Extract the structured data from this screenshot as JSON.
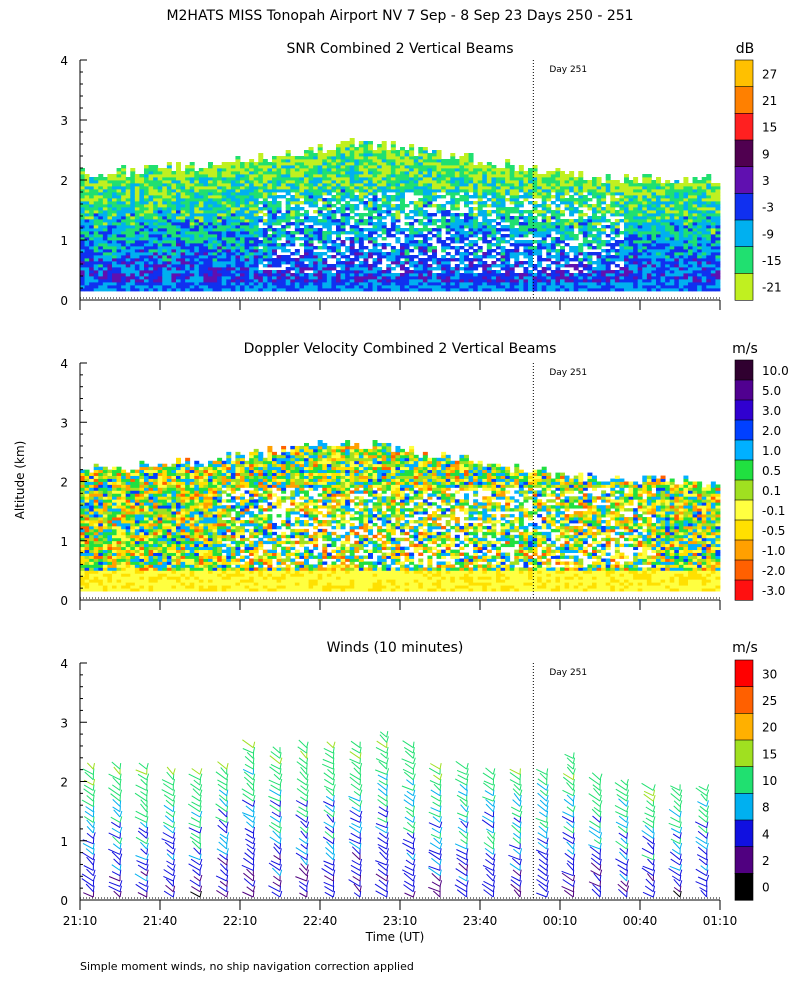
{
  "figure": {
    "title": "M2HATS MISS Tonopah Airport NV   7 Sep -  8 Sep 23 Days 250 - 251",
    "shared_ylabel": "Altitude (km)",
    "xlabel": "Time (UT)",
    "footnote": "Simple moment winds, no ship navigation correction applied",
    "x_ticks": [
      "21:10",
      "21:40",
      "22:10",
      "22:40",
      "23:10",
      "23:40",
      "00:10",
      "00:40",
      "01:10"
    ],
    "y_ticks": [
      "0",
      "1",
      "2",
      "3",
      "4"
    ],
    "day_marker": "Day 251"
  },
  "chart_data": [
    {
      "type": "heatmap",
      "title": "SNR Combined 2 Vertical Beams",
      "units": "dB",
      "xlim": [
        "21:10",
        "01:10"
      ],
      "ylim": [
        0,
        4
      ],
      "colorbar_labels": [
        "27",
        "21",
        "15",
        "9",
        "3",
        "-3",
        "-9",
        "-15",
        "-21"
      ],
      "colorbar_colors": [
        "#ffc000",
        "#ff8000",
        "#ff2020",
        "#500050",
        "#6010b0",
        "#1030f0",
        "#00b0f0",
        "#20e070",
        "#c0f020"
      ],
      "echo_top_km": [
        2.1,
        2.1,
        2.2,
        2.2,
        2.3,
        2.4,
        2.5,
        2.6,
        2.5,
        2.4,
        2.3,
        2.2,
        2.1,
        2.0,
        2.0,
        2.0,
        2.0
      ],
      "echo_top_times": [
        "21:10",
        "21:25",
        "21:40",
        "21:55",
        "22:10",
        "22:25",
        "22:40",
        "22:55",
        "23:10",
        "23:25",
        "23:40",
        "23:55",
        "00:10",
        "00:25",
        "00:40",
        "00:55",
        "01:10"
      ],
      "base_km": 0.15
    },
    {
      "type": "heatmap",
      "title": "Doppler Velocity Combined 2 Vertical Beams",
      "units": "m/s",
      "xlim": [
        "21:10",
        "01:10"
      ],
      "ylim": [
        0,
        4
      ],
      "colorbar_labels": [
        "10.0",
        "5.0",
        "3.0",
        "2.0",
        "1.0",
        "0.5",
        "0.1",
        "-0.1",
        "-0.5",
        "-1.0",
        "-2.0",
        "-3.0"
      ],
      "colorbar_colors": [
        "#300030",
        "#500090",
        "#3000d0",
        "#0040ff",
        "#00b0ff",
        "#20e040",
        "#a0e020",
        "#ffff40",
        "#ffe000",
        "#ffa000",
        "#ff6000",
        "#ff1010"
      ],
      "echo_top_km": [
        2.2,
        2.2,
        2.3,
        2.3,
        2.4,
        2.5,
        2.6,
        2.6,
        2.5,
        2.4,
        2.3,
        2.2,
        2.1,
        2.0,
        2.0,
        2.0,
        1.9
      ],
      "echo_top_times": [
        "21:10",
        "21:25",
        "21:40",
        "21:55",
        "22:10",
        "22:25",
        "22:40",
        "22:55",
        "23:10",
        "23:25",
        "23:40",
        "23:55",
        "00:10",
        "00:25",
        "00:40",
        "00:55",
        "01:10"
      ],
      "base_km": 0.15
    },
    {
      "type": "scatter",
      "title": "Winds (10 minutes)",
      "units": "m/s",
      "xlim": [
        "21:10",
        "01:10"
      ],
      "ylim": [
        0,
        4
      ],
      "colorbar_labels": [
        "30",
        "25",
        "20",
        "15",
        "10",
        "8",
        "4",
        "2",
        "0"
      ],
      "colorbar_colors": [
        "#ff0000",
        "#ff6000",
        "#ffb000",
        "#a0e020",
        "#20e070",
        "#00b0f0",
        "#1010e0",
        "#500080",
        "#000000"
      ],
      "profile_times": [
        "21:15",
        "21:25",
        "21:35",
        "21:45",
        "21:55",
        "22:05",
        "22:15",
        "22:25",
        "22:35",
        "22:45",
        "22:55",
        "23:05",
        "23:15",
        "23:25",
        "23:35",
        "23:45",
        "23:55",
        "00:05",
        "00:15",
        "00:25",
        "00:35",
        "00:45",
        "00:55",
        "01:05"
      ],
      "profile_top_km": [
        2.3,
        2.3,
        2.3,
        2.2,
        2.2,
        2.3,
        2.6,
        2.5,
        2.6,
        2.6,
        2.6,
        2.8,
        2.6,
        2.3,
        2.3,
        2.2,
        2.2,
        2.2,
        2.4,
        2.1,
        2.0,
        1.9,
        1.9,
        1.9
      ]
    }
  ]
}
